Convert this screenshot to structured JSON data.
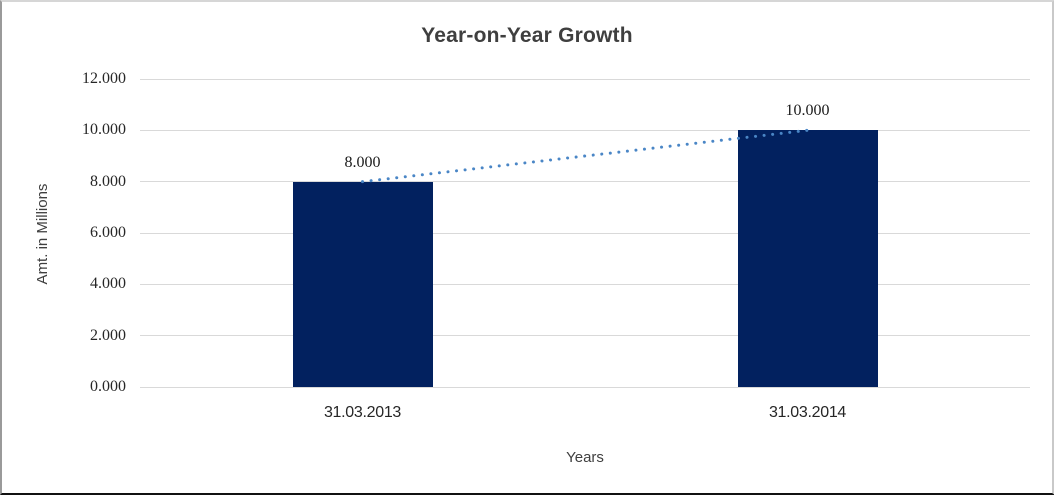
{
  "chart_data": {
    "type": "bar",
    "title": "Year-on-Year Growth",
    "xlabel": "Years",
    "ylabel": "Amt. in Millions",
    "categories": [
      "31.03.2013",
      "31.03.2014"
    ],
    "values": [
      8,
      10
    ],
    "value_labels": [
      "8.000",
      "10.000"
    ],
    "ylim": [
      0,
      12
    ],
    "ytick_step": 2,
    "ytick_labels": [
      "0.000",
      "2.000",
      "4.000",
      "6.000",
      "8.000",
      "10.000",
      "12.000"
    ],
    "grid": true,
    "legend": "none",
    "trendline": {
      "style": "dotted",
      "connects": "bar-tops",
      "from_value": 8,
      "to_value": 10
    },
    "colors": {
      "bar": "#02215F",
      "trendline": "#4A86C6",
      "gridline": "#D9D9D9",
      "title_text": "#3F3F3F",
      "tick_text": "#262626"
    }
  }
}
